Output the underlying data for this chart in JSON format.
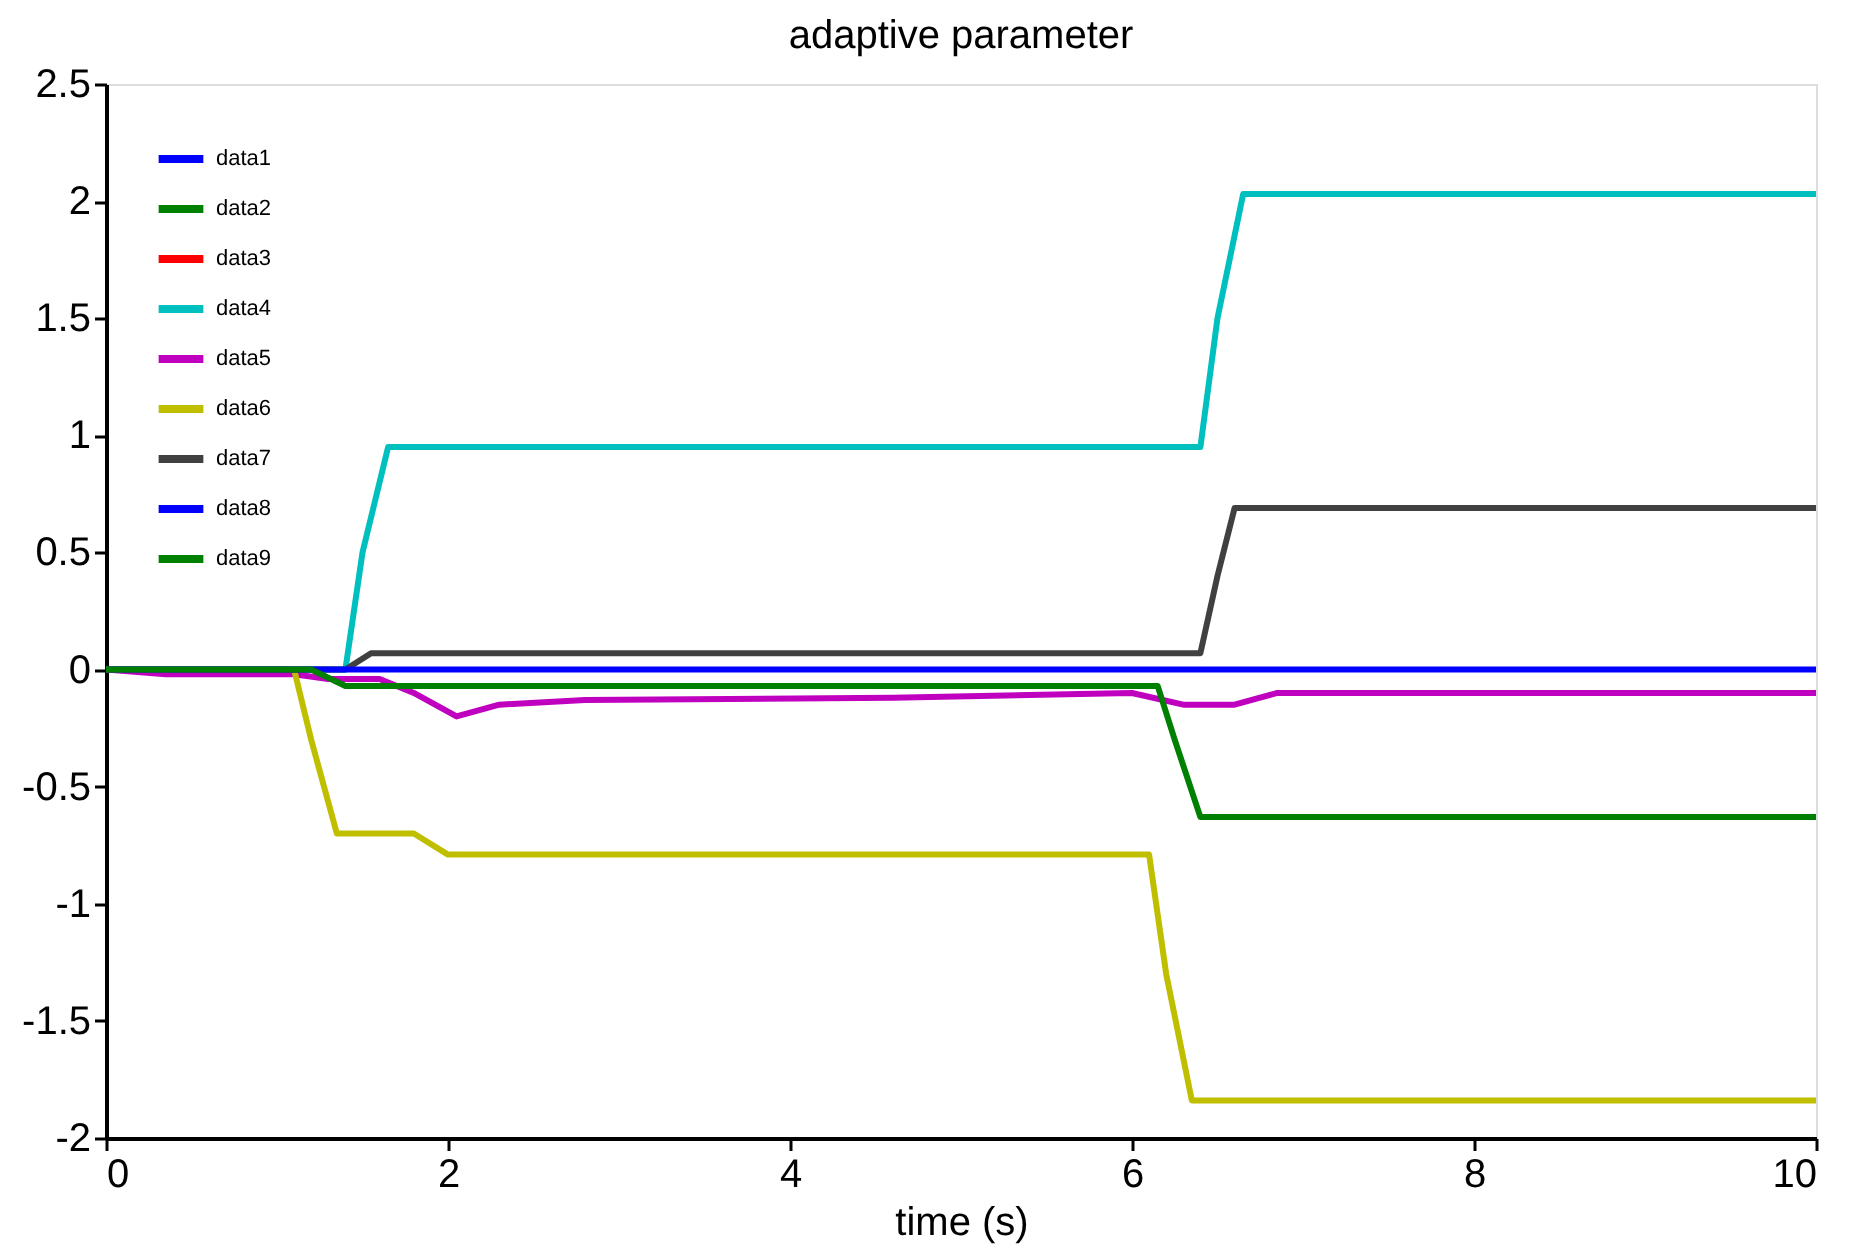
{
  "chart_data": {
    "type": "line",
    "title": "adaptive parameter",
    "xlabel": "time (s)",
    "xlim": [
      0,
      10
    ],
    "ylim": [
      -2,
      2.5
    ],
    "xticks": [
      0,
      2,
      4,
      6,
      8,
      10
    ],
    "yticks": [
      -2,
      -1.5,
      -1,
      -0.5,
      0,
      0.5,
      1,
      1.5,
      2,
      2.5
    ],
    "grid": false,
    "legend": "top left",
    "marker": "none",
    "line_style": "solid",
    "series": [
      {
        "name": "data1",
        "color": "#0000ff"
      },
      {
        "name": "data2",
        "color": "#008000"
      },
      {
        "name": "data3",
        "color": "#ff0000"
      },
      {
        "name": "data4",
        "color": "#00bfbf",
        "x": [
          0,
          1.4,
          1.5,
          1.65,
          6.4,
          6.5,
          6.65,
          10
        ],
        "values": [
          0,
          0,
          0.5,
          0.95,
          0.95,
          1.5,
          2.03,
          2.03
        ]
      },
      {
        "name": "data5",
        "color": "#bf00bf",
        "x": [
          0,
          0.35,
          1.1,
          1.3,
          1.6,
          1.8,
          2.05,
          2.3,
          2.8,
          4.6,
          6.0,
          6.3,
          6.6,
          6.85,
          10
        ],
        "values": [
          0,
          -0.02,
          -0.02,
          -0.04,
          -0.04,
          -0.1,
          -0.2,
          -0.15,
          -0.13,
          -0.12,
          -0.1,
          -0.15,
          -0.15,
          -0.1,
          -0.1
        ]
      },
      {
        "name": "data6",
        "color": "#bfbf00",
        "x": [
          0,
          1.1,
          1.2,
          1.35,
          1.8,
          2.0,
          6.1,
          6.2,
          6.35,
          10
        ],
        "values": [
          0,
          0,
          -0.3,
          -0.7,
          -0.7,
          -0.79,
          -0.79,
          -1.3,
          -1.84,
          -1.84
        ]
      },
      {
        "name": "data7",
        "color": "#404040",
        "x": [
          0,
          1.4,
          1.55,
          6.4,
          6.5,
          6.6,
          10
        ],
        "values": [
          0,
          0,
          0.07,
          0.07,
          0.4,
          0.69,
          0.69
        ]
      },
      {
        "name": "data8",
        "color": "#0000ff",
        "x": [
          0,
          10
        ],
        "values": [
          0,
          0
        ]
      },
      {
        "name": "data9",
        "color": "#008000",
        "x": [
          0,
          1.2,
          1.4,
          6.15,
          6.25,
          6.4,
          10
        ],
        "values": [
          0,
          0,
          -0.07,
          -0.07,
          -0.3,
          -0.63,
          -0.63
        ]
      }
    ]
  }
}
